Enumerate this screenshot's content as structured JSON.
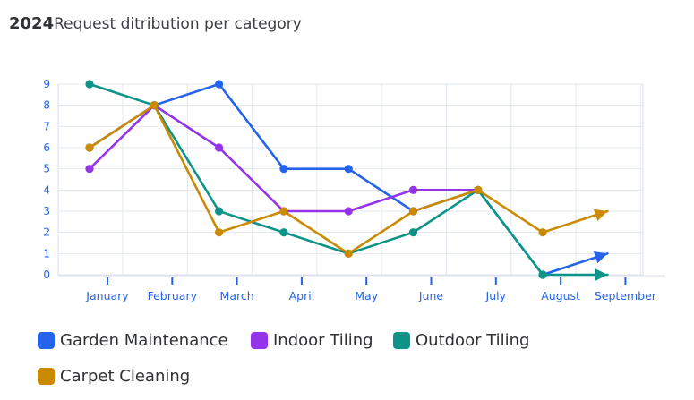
{
  "header": {
    "year": "2024",
    "title": "Request ditribution per category"
  },
  "chart_data": {
    "type": "line",
    "title": "Request ditribution per category",
    "categories": [
      "January",
      "February",
      "March",
      "April",
      "May",
      "June",
      "July",
      "August",
      "September"
    ],
    "ylim": [
      0,
      9
    ],
    "yticks": [
      0,
      1,
      2,
      3,
      4,
      5,
      6,
      7,
      8,
      9
    ],
    "grid": true,
    "legend_position": "bottom",
    "series": [
      {
        "name": "Garden Maintenance",
        "color": "#2563eb",
        "values": [
          6,
          8,
          9,
          5,
          5,
          3,
          4,
          0,
          1
        ]
      },
      {
        "name": "Indoor Tiling",
        "color": "#9333ea",
        "values": [
          5,
          8,
          6,
          3,
          3,
          4,
          4,
          null,
          null
        ]
      },
      {
        "name": "Outdoor Tiling",
        "color": "#0d9488",
        "values": [
          9,
          8,
          3,
          2,
          1,
          2,
          4,
          0,
          0
        ]
      },
      {
        "name": "Carpet Cleaning",
        "color": "#ca8a04",
        "values": [
          6,
          8,
          2,
          3,
          1,
          3,
          4,
          2,
          3
        ]
      }
    ]
  }
}
